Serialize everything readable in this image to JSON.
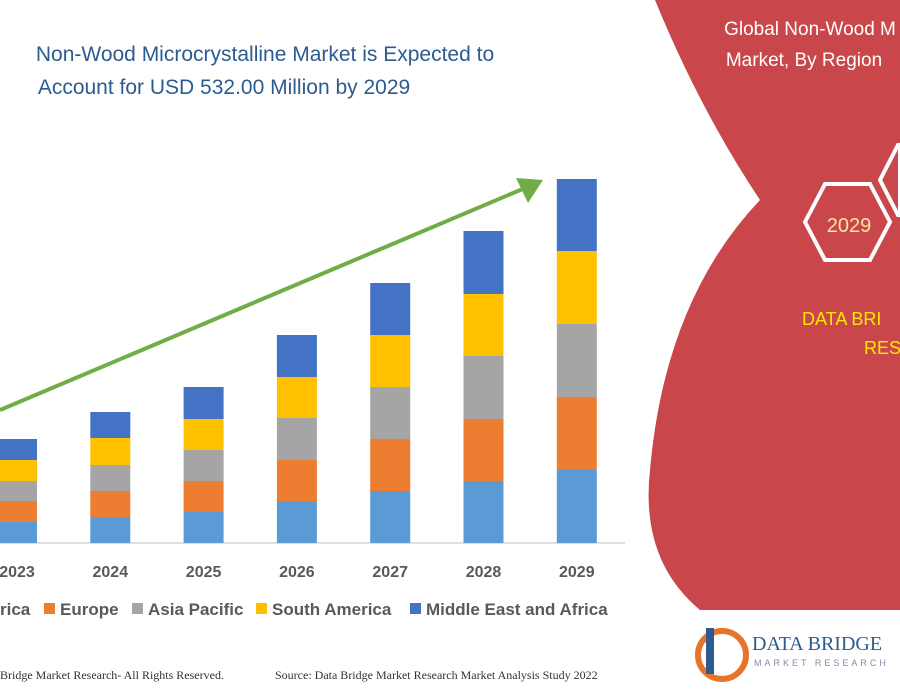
{
  "header": {
    "title_lines": [
      "Non-Wood Microcrystalline Market is Expected to",
      "Account for USD  532.00 Million by 2029"
    ]
  },
  "chart_data": {
    "type": "stacked-bar",
    "categories": [
      "2023",
      "2024",
      "2025",
      "2026",
      "2027",
      "2028",
      "2029"
    ],
    "series": [
      {
        "name": "rica",
        "color": "#5b9bd5",
        "values": [
          21,
          26,
          31,
          42,
          52,
          62,
          73
        ]
      },
      {
        "name": "Europe",
        "color": "#ed7d31",
        "values": [
          21,
          26,
          31,
          41,
          52,
          62,
          73
        ]
      },
      {
        "name": "Asia Pacific",
        "color": "#a5a5a5",
        "values": [
          20,
          26,
          31,
          42,
          52,
          63,
          73
        ]
      },
      {
        "name": "South America",
        "color": "#ffc000",
        "values": [
          21,
          27,
          31,
          41,
          52,
          62,
          73
        ]
      },
      {
        "name": "Middle East and Africa",
        "color": "#4472c4",
        "values": [
          21,
          26,
          32,
          42,
          52,
          63,
          72
        ]
      }
    ]
  },
  "panel": {
    "title_lines": [
      "Global Non-Wood M",
      "Market, By Region"
    ],
    "hexagon": "2029",
    "brand_lines": [
      "DATA BRI",
      "RES"
    ]
  },
  "logo": {
    "name": "DATA BRIDGE",
    "tagline": "MARKET RESEARCH"
  },
  "footer": {
    "rights": "Bridge Market Research- All Rights Reserved.",
    "source": "Source: Data Bridge Market Research Market Analysis Study 2022"
  }
}
